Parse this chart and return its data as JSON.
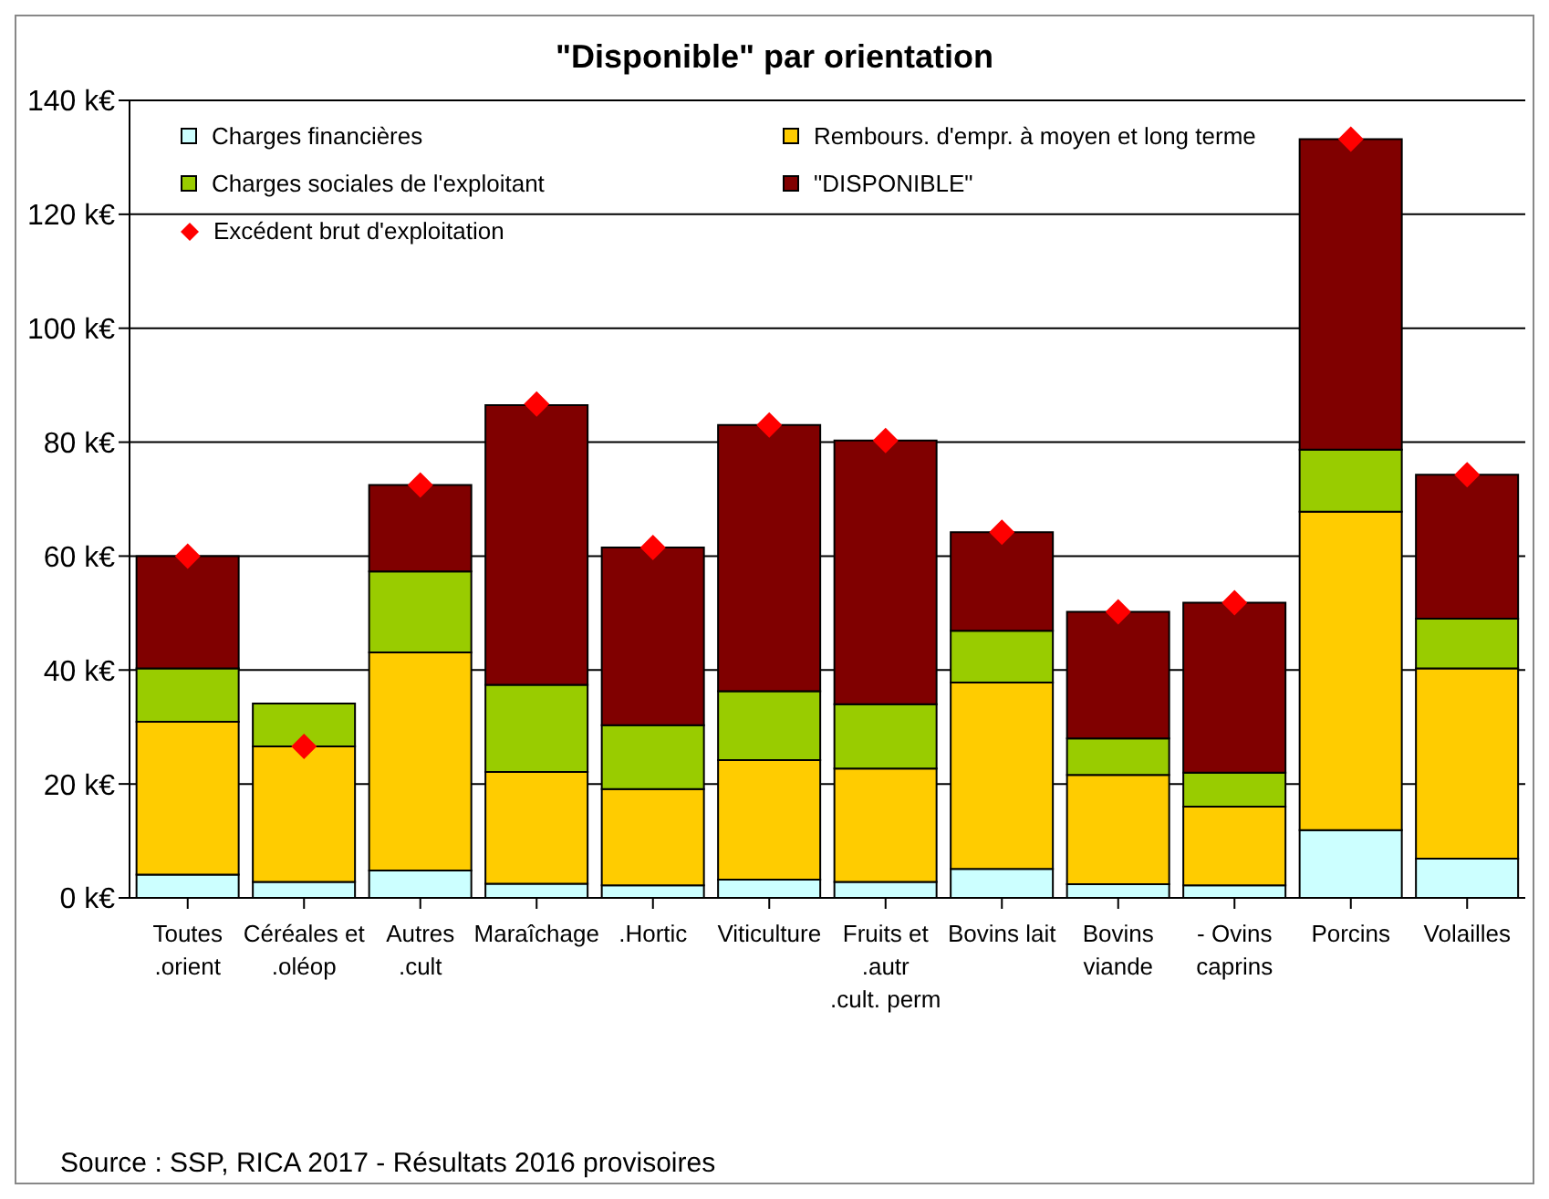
{
  "chart_data": {
    "type": "bar",
    "title": "\"Disponible\" par orientation",
    "stacked": true,
    "categories": [
      "Toutes\n.orient",
      "Céréales et\n.oléop",
      "Autres\n.cult",
      "Maraîchage",
      ".Hortic",
      "Viticulture",
      "Fruits et\n.autr\n.cult. perm",
      "Bovins lait",
      "Bovins\nviande",
      "- Ovins\ncaprins",
      "Porcins",
      "Volailles"
    ],
    "series": [
      {
        "name": "Charges financières",
        "color": "#ccffff",
        "values": [
          4.1,
          2.8,
          4.8,
          2.5,
          2.2,
          3.2,
          2.8,
          5.1,
          2.4,
          2.2,
          11.9,
          6.9
        ]
      },
      {
        "name": "Rembours. d'empr. à moyen et long terme",
        "color": "#ffcc00",
        "values": [
          26.8,
          23.8,
          38.3,
          19.6,
          16.9,
          21.0,
          19.9,
          32.7,
          19.2,
          13.8,
          55.9,
          33.4
        ]
      },
      {
        "name": "Charges sociales de l'exploitant",
        "color": "#99cc00",
        "values": [
          9.4,
          7.5,
          14.2,
          15.3,
          11.2,
          12.1,
          11.3,
          9.1,
          6.4,
          6.0,
          10.9,
          8.7
        ]
      },
      {
        "name": "\"DISPONIBLE\"",
        "color": "#800000",
        "values": [
          19.7,
          0,
          15.2,
          49.1,
          31.2,
          46.7,
          46.3,
          17.3,
          22.2,
          29.8,
          54.5,
          25.3
        ]
      },
      {
        "name": "Excédent brut d'exploitation",
        "type": "scatter",
        "marker": "diamond",
        "color": "#ff0000",
        "x": [
          "Toutes\n.orient",
          "Céréales et\n.oléop",
          "Autres\n.cult",
          "Maraîchage",
          ".Hortic",
          "Viticulture",
          "Fruits et\n.autr\n.cult. perm",
          "Bovins lait",
          "Bovins\nviande",
          "- Ovins\ncaprins",
          "Porcins",
          "Volailles"
        ],
        "values": [
          60.0,
          26.6,
          72.5,
          86.7,
          61.5,
          83.0,
          80.3,
          64.2,
          50.2,
          51.8,
          133.2,
          74.3
        ]
      }
    ],
    "ylim": [
      0,
      140
    ],
    "yticks": [
      {
        "value": 0,
        "label": "0 k€"
      },
      {
        "value": 20,
        "label": "20 k€"
      },
      {
        "value": 40,
        "label": "40 k€"
      },
      {
        "value": 60,
        "label": "60 k€"
      },
      {
        "value": 80,
        "label": "80 k€"
      },
      {
        "value": 100,
        "label": "100 k€"
      },
      {
        "value": 120,
        "label": "120 k€"
      },
      {
        "value": 140,
        "label": "140 k€"
      }
    ],
    "grid": "y",
    "legend": "top left",
    "annotations": [
      "Source : SSP, RICA 2017 - Résultats 2016 provisoires"
    ]
  }
}
